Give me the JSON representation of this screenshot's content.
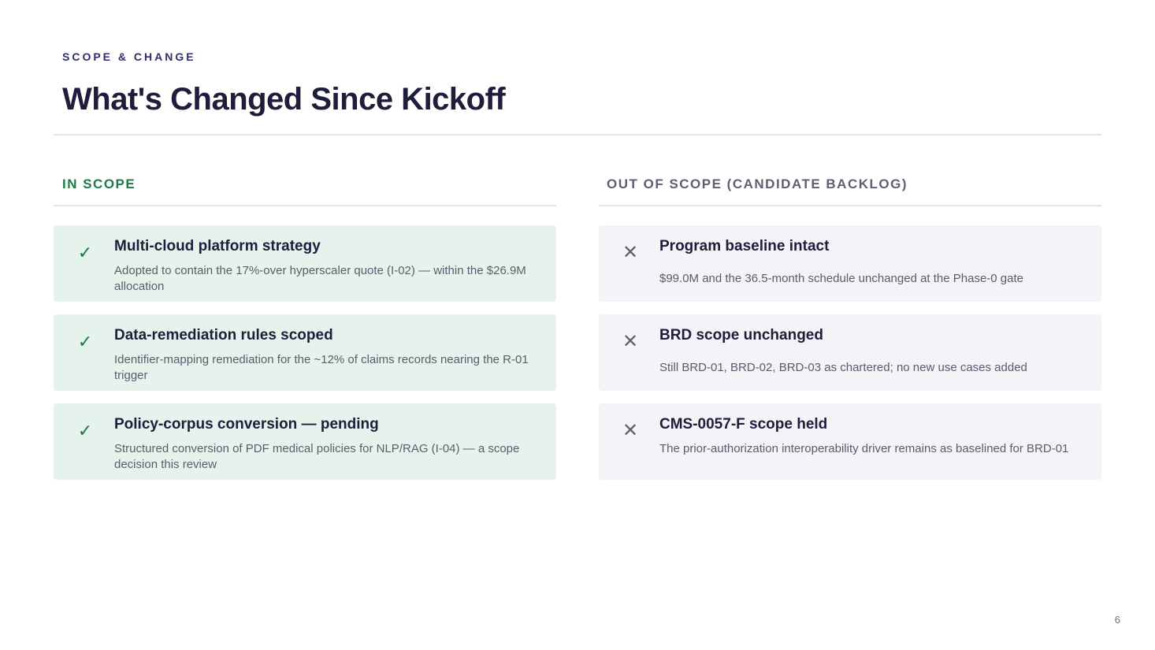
{
  "header": {
    "eyebrow": "SCOPE & CHANGE",
    "title": "What's Changed Since Kickoff"
  },
  "in_scope": {
    "heading": "IN SCOPE",
    "icon": "check-icon",
    "accent": "#1f7a45",
    "items": [
      {
        "title": "Multi-cloud platform strategy",
        "desc": "Adopted to contain the 17%-over hyperscaler quote (I-02) — within the $26.9M allocation"
      },
      {
        "title": "Data-remediation rules scoped",
        "desc": "Identifier-mapping remediation for the ~12% of claims records nearing the R-01 trigger"
      },
      {
        "title": "Policy-corpus conversion — pending",
        "desc": "Structured conversion of PDF medical policies for NLP/RAG (I-04) — a scope decision this review"
      }
    ]
  },
  "out_scope": {
    "heading": "OUT OF SCOPE (CANDIDATE BACKLOG)",
    "icon": "cross-icon",
    "accent": "#5e5f70",
    "items": [
      {
        "title": "Program baseline intact",
        "desc": "$99.0M and the 36.5-month schedule unchanged at the Phase-0 gate"
      },
      {
        "title": "BRD scope unchanged",
        "desc": "Still BRD-01, BRD-02, BRD-03 as chartered; no new use cases added"
      },
      {
        "title": "CMS-0057-F scope held",
        "desc": "The prior-authorization interoperability driver remains as baselined for BRD-01"
      }
    ]
  },
  "footer": {
    "page_number": "6"
  }
}
